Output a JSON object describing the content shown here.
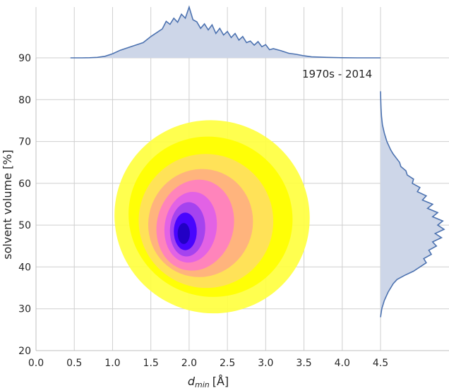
{
  "chart_data": {
    "type": "heatmap",
    "annotation": "1970s - 2014",
    "xlabel_main": "d",
    "xlabel_sub": "min",
    "xlabel_unit": "[Å]",
    "ylabel": "solvent volume [%]",
    "xlim": [
      0.0,
      4.5
    ],
    "ylim": [
      20,
      90
    ],
    "x_ticks": [
      "0.0",
      "0.5",
      "1.0",
      "1.5",
      "2.0",
      "2.5",
      "3.0",
      "3.5",
      "4.0",
      "4.5"
    ],
    "y_ticks": [
      "20",
      "30",
      "40",
      "50",
      "60",
      "70",
      "80",
      "90"
    ],
    "grid": true,
    "density_levels": [
      {
        "level": 1,
        "color": "#ffff40"
      },
      {
        "level": 2,
        "color": "#ffff00"
      },
      {
        "level": 3,
        "color": "#ffe060"
      },
      {
        "level": 4,
        "color": "#ffb080"
      },
      {
        "level": 5,
        "color": "#ff80c0"
      },
      {
        "level": 6,
        "color": "#e060e8"
      },
      {
        "level": 7,
        "color": "#a040f0"
      },
      {
        "level": 8,
        "color": "#4000ff"
      },
      {
        "level": 9,
        "color": "#2000c0"
      }
    ],
    "density_contours": [
      {
        "level": 1,
        "cx": 2.3,
        "cy": 52,
        "sx": 1.28,
        "sy": 23,
        "angle": 28
      },
      {
        "level": 2,
        "cx": 2.28,
        "cy": 52,
        "sx": 1.08,
        "sy": 19,
        "angle": 28
      },
      {
        "level": 3,
        "cx": 2.22,
        "cy": 51,
        "sx": 0.88,
        "sy": 16,
        "angle": 26
      },
      {
        "level": 4,
        "cx": 2.15,
        "cy": 50.5,
        "sx": 0.68,
        "sy": 13,
        "angle": 22
      },
      {
        "level": 5,
        "cx": 2.08,
        "cy": 50,
        "sx": 0.5,
        "sy": 11,
        "angle": 15
      },
      {
        "level": 6,
        "cx": 2.02,
        "cy": 49.5,
        "sx": 0.34,
        "sy": 8.5,
        "angle": 8
      },
      {
        "level": 7,
        "cx": 1.98,
        "cy": 49,
        "sx": 0.23,
        "sy": 6.5,
        "angle": 4
      },
      {
        "level": 8,
        "cx": 1.95,
        "cy": 48.5,
        "sx": 0.15,
        "sy": 4.5,
        "angle": 0
      },
      {
        "level": 9,
        "cx": 1.93,
        "cy": 48,
        "sx": 0.08,
        "sy": 2.5,
        "angle": 0
      }
    ],
    "marginal_x": {
      "x": [
        0.45,
        0.6,
        0.7,
        0.8,
        0.9,
        1.0,
        1.1,
        1.2,
        1.3,
        1.4,
        1.5,
        1.6,
        1.65,
        1.7,
        1.75,
        1.8,
        1.85,
        1.9,
        1.95,
        2.0,
        2.05,
        2.1,
        2.15,
        2.2,
        2.25,
        2.3,
        2.35,
        2.4,
        2.45,
        2.5,
        2.55,
        2.6,
        2.65,
        2.7,
        2.75,
        2.8,
        2.85,
        2.9,
        2.95,
        3.0,
        3.05,
        3.1,
        3.2,
        3.3,
        3.4,
        3.5,
        3.6,
        3.7,
        3.8,
        3.9,
        4.0,
        4.2,
        4.5
      ],
      "density": [
        0.0,
        0.0,
        0.003,
        0.01,
        0.03,
        0.08,
        0.15,
        0.2,
        0.25,
        0.3,
        0.42,
        0.52,
        0.57,
        0.72,
        0.66,
        0.78,
        0.7,
        0.86,
        0.78,
        1.0,
        0.75,
        0.71,
        0.58,
        0.67,
        0.55,
        0.65,
        0.48,
        0.58,
        0.45,
        0.52,
        0.4,
        0.48,
        0.35,
        0.42,
        0.3,
        0.33,
        0.25,
        0.32,
        0.22,
        0.26,
        0.16,
        0.18,
        0.14,
        0.09,
        0.07,
        0.04,
        0.02,
        0.015,
        0.01,
        0.005,
        0.003,
        0.0,
        0.0
      ]
    },
    "marginal_y": {
      "y": [
        28,
        30,
        32,
        34,
        36,
        37,
        38,
        39,
        40,
        41,
        42,
        43,
        44,
        45,
        46,
        47,
        48,
        49,
        50,
        51,
        52,
        53,
        54,
        55,
        56,
        57,
        58,
        59,
        60,
        61,
        62,
        63,
        64,
        65,
        66,
        67,
        68,
        70,
        72,
        74,
        76,
        78,
        80,
        82
      ],
      "density": [
        0.0,
        0.02,
        0.06,
        0.12,
        0.2,
        0.26,
        0.38,
        0.52,
        0.62,
        0.72,
        0.68,
        0.8,
        0.76,
        0.88,
        0.82,
        0.96,
        0.86,
        1.0,
        0.9,
        0.98,
        0.82,
        0.9,
        0.74,
        0.82,
        0.66,
        0.72,
        0.58,
        0.62,
        0.5,
        0.52,
        0.42,
        0.4,
        0.32,
        0.3,
        0.25,
        0.2,
        0.16,
        0.1,
        0.06,
        0.03,
        0.015,
        0.008,
        0.003,
        0.0
      ]
    }
  }
}
